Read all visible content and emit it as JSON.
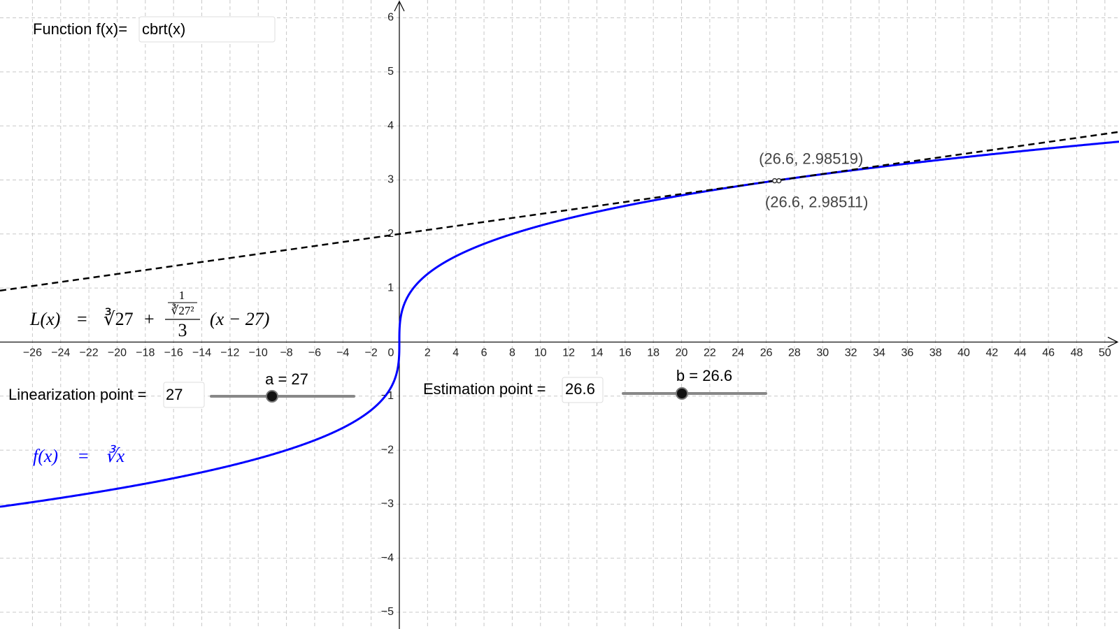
{
  "chart_data": {
    "type": "function-plot",
    "xlim": [
      -28.3,
      51.0
    ],
    "ylim": [
      -5.31,
      6.33
    ],
    "xticks": [
      {
        "value": -26,
        "label": "−26"
      },
      {
        "value": -24,
        "label": "−24"
      },
      {
        "value": -22,
        "label": "−22"
      },
      {
        "value": -20,
        "label": "−20"
      },
      {
        "value": -18,
        "label": "−18"
      },
      {
        "value": -16,
        "label": "−16"
      },
      {
        "value": -14,
        "label": "−14"
      },
      {
        "value": -12,
        "label": "−12"
      },
      {
        "value": -10,
        "label": "−10"
      },
      {
        "value": -8,
        "label": "−8"
      },
      {
        "value": -6,
        "label": "−6"
      },
      {
        "value": -4,
        "label": "−4"
      },
      {
        "value": -2,
        "label": "−2"
      },
      0,
      2,
      4,
      6,
      8,
      10,
      12,
      14,
      16,
      18,
      20,
      22,
      24,
      26,
      28,
      30,
      32,
      34,
      36,
      38,
      40,
      42,
      44,
      46,
      48,
      50
    ],
    "yticks": [
      {
        "value": -5,
        "label": "−5"
      },
      {
        "value": -4,
        "label": "−4"
      },
      {
        "value": -3,
        "label": "−3"
      },
      {
        "value": -2,
        "label": "−2"
      },
      {
        "value": -1,
        "label": "−1"
      },
      1,
      2,
      3,
      4,
      5,
      6
    ],
    "grid": true,
    "function_input": {
      "label": "Function f(x)=",
      "text": "cbrt(x)"
    },
    "sliders": [
      {
        "label": "Linearization point =",
        "value": 27,
        "value_label": "a = 27"
      },
      {
        "label": "Estimation point =",
        "value": 26.6,
        "value_label": "b = 26.6"
      }
    ],
    "curve_color": "#0000ff",
    "tangent_color": "#000000",
    "points": [
      {
        "x": 26.6,
        "y": 2.98519,
        "label": "(26.6, 2.98519)"
      },
      {
        "x": 26.6,
        "y": 2.98511,
        "label": "(26.6, 2.98511)"
      }
    ],
    "formula_L": {
      "lhs": "L(x)",
      "eq": "=",
      "root": "∛27",
      "plus": "+",
      "num": "1",
      "num_den": "∛27²",
      "den": "3",
      "tail": "(x − 27)"
    },
    "formula_f": {
      "lhs": "f(x)",
      "eq": "=",
      "rhs": "∛x"
    }
  }
}
